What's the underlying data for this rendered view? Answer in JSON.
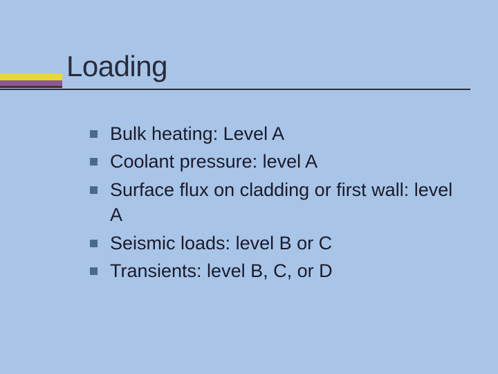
{
  "slide": {
    "title": "Loading",
    "title_fontsize": 42,
    "title_color": "#2a2a3a",
    "background_color": "#a8c5e8",
    "accent_colors": {
      "yellow": "#e8d838",
      "purple": "#8b5a8c",
      "purple_shadow": "#4a2a4a"
    },
    "underline_color": "#2a2a3a",
    "bullets": [
      {
        "text": "Bulk heating: Level A"
      },
      {
        "text": "Coolant pressure: level A"
      },
      {
        "text": "Surface flux on cladding or first wall: level A"
      },
      {
        "text": "Seismic loads: level B or C"
      },
      {
        "text": "Transients: level B, C, or D"
      }
    ],
    "bullet_marker_color": "#4a6a8a",
    "bullet_fontsize": 27,
    "bullet_text_color": "#1a1a2a"
  }
}
